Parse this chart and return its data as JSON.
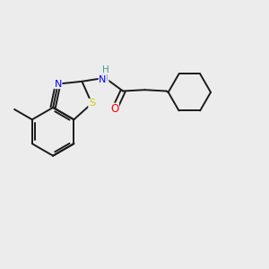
{
  "background_color": "#ececec",
  "bond_color": "#1a1a1a",
  "atom_colors": {
    "N": "#0000ff",
    "S": "#cccc00",
    "O": "#ff0000",
    "H": "#4a9999",
    "C": "#1a1a1a"
  },
  "bond_width": 1.4,
  "figsize": [
    3.0,
    3.0
  ],
  "dpi": 100
}
